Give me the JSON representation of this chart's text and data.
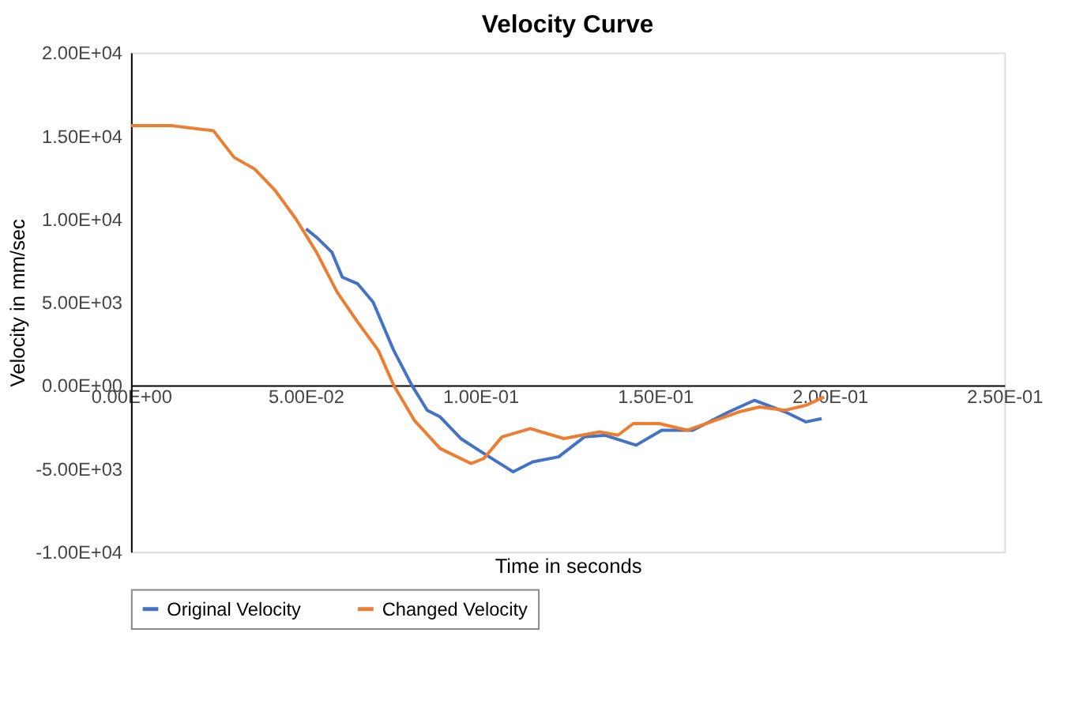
{
  "chart_data": {
    "type": "line",
    "title": "Velocity Curve",
    "xlabel": "Time in seconds",
    "ylabel": "Velocity in mm/sec",
    "xlim": [
      0,
      0.25
    ],
    "xticks": [
      {
        "value": 0,
        "label": "0.00E+00"
      },
      {
        "value": 0.05,
        "label": "5.00E-02"
      },
      {
        "value": 0.1,
        "label": "1.00E-01"
      },
      {
        "value": 0.15,
        "label": "1.50E-01"
      },
      {
        "value": 0.2,
        "label": "2.00E-01"
      },
      {
        "value": 0.25,
        "label": "2.50E-01"
      }
    ],
    "ylim": [
      -10000,
      20000
    ],
    "yticks": [
      {
        "value": -10000,
        "label": "-1.00E+04"
      },
      {
        "value": -5000,
        "label": "-5.00E+03"
      },
      {
        "value": 0,
        "label": "0.00E+00"
      },
      {
        "value": 5000,
        "label": "5.00E+03"
      },
      {
        "value": 10000,
        "label": "1.00E+04"
      },
      {
        "value": 15000,
        "label": "1.50E+04"
      },
      {
        "value": 20000,
        "label": "2.00E+04"
      }
    ],
    "grid": false,
    "legend": "bottom",
    "marker": "none",
    "line_style": "solid",
    "series": [
      {
        "name": "Original Velocity",
        "color": "#4472c4",
        "x": [
          0.0501,
          0.0531,
          0.0575,
          0.0605,
          0.0649,
          0.0693,
          0.0752,
          0.0804,
          0.0848,
          0.0885,
          0.0944,
          0.1003,
          0.1094,
          0.115,
          0.1224,
          0.1298,
          0.1357,
          0.1446,
          0.1519,
          0.1608,
          0.1711,
          0.1785,
          0.1873,
          0.1932,
          0.1977
        ],
        "values": [
          9400,
          8900,
          8000,
          6500,
          6100,
          5000,
          2100,
          0,
          -1500,
          -1900,
          -3200,
          -4000,
          -5200,
          -4600,
          -4300,
          -3100,
          -3000,
          -3600,
          -2700,
          -2700,
          -1600,
          -900,
          -1600,
          -2200,
          -2000
        ]
      },
      {
        "name": "Changed Velocity",
        "color": "#ed7d31",
        "x": [
          0,
          0.0118,
          0.0236,
          0.0295,
          0.0354,
          0.0413,
          0.0472,
          0.0531,
          0.059,
          0.0649,
          0.0708,
          0.0752,
          0.0811,
          0.0885,
          0.0973,
          0.101,
          0.1062,
          0.1143,
          0.1239,
          0.1342,
          0.1394,
          0.1438,
          0.1512,
          0.1593,
          0.174,
          0.1799,
          0.1873,
          0.1932,
          0.1984
        ],
        "values": [
          15600,
          15600,
          15300,
          13700,
          13000,
          11700,
          10000,
          8000,
          5600,
          3800,
          2100,
          0,
          -2100,
          -3800,
          -4700,
          -4400,
          -3100,
          -2600,
          -3200,
          -2800,
          -3000,
          -2300,
          -2300,
          -2700,
          -1600,
          -1300,
          -1500,
          -1200,
          -700
        ]
      }
    ]
  }
}
